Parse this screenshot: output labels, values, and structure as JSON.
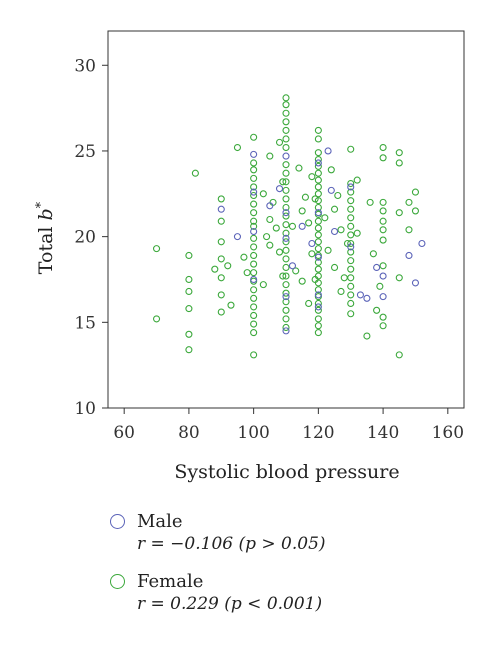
{
  "chart_data": {
    "type": "scatter",
    "xlabel": "Systolic blood pressure",
    "ylabel_prefix": "Total ",
    "ylabel_var": "b",
    "ylabel_sup": "*",
    "xlim": [
      55,
      165
    ],
    "ylim": [
      10,
      32
    ],
    "xticks": [
      "60",
      "80",
      "100",
      "120",
      "140",
      "160"
    ],
    "yticks": [
      "10",
      "15",
      "20",
      "25",
      "30"
    ],
    "grid": false,
    "legend_position": "below",
    "series": [
      {
        "name": "Male",
        "color": "#5b63b8",
        "stat": "r = −0.106 (p > 0.05)",
        "points": [
          [
            90,
            21.6
          ],
          [
            95,
            20.0
          ],
          [
            100,
            24.8
          ],
          [
            100,
            22.6
          ],
          [
            100,
            20.3
          ],
          [
            100,
            17.5
          ],
          [
            105,
            21.8
          ],
          [
            108,
            22.8
          ],
          [
            110,
            24.7
          ],
          [
            110,
            21.4
          ],
          [
            110,
            19.9
          ],
          [
            110,
            16.5
          ],
          [
            110,
            14.5
          ],
          [
            112,
            18.3
          ],
          [
            115,
            20.6
          ],
          [
            118,
            19.6
          ],
          [
            120,
            24.3
          ],
          [
            120,
            21.4
          ],
          [
            120,
            18.8
          ],
          [
            120,
            16.6
          ],
          [
            120,
            15.9
          ],
          [
            123,
            25.0
          ],
          [
            124,
            22.7
          ],
          [
            125,
            20.3
          ],
          [
            130,
            22.9
          ],
          [
            130,
            19.4
          ],
          [
            133,
            16.6
          ],
          [
            135,
            16.4
          ],
          [
            138,
            18.2
          ],
          [
            140,
            17.7
          ],
          [
            140,
            16.5
          ],
          [
            148,
            18.9
          ],
          [
            150,
            17.3
          ],
          [
            152,
            19.6
          ]
        ]
      },
      {
        "name": "Female",
        "color": "#3ba83b",
        "stat": "r = 0.229 (p < 0.001)",
        "points": [
          [
            70,
            19.3
          ],
          [
            70,
            15.2
          ],
          [
            80,
            18.9
          ],
          [
            80,
            17.5
          ],
          [
            80,
            16.8
          ],
          [
            80,
            15.8
          ],
          [
            80,
            14.3
          ],
          [
            80,
            13.4
          ],
          [
            82,
            23.7
          ],
          [
            88,
            18.1
          ],
          [
            90,
            22.2
          ],
          [
            90,
            20.9
          ],
          [
            90,
            19.7
          ],
          [
            90,
            18.7
          ],
          [
            90,
            17.6
          ],
          [
            90,
            16.6
          ],
          [
            90,
            15.6
          ],
          [
            92,
            18.3
          ],
          [
            93,
            16.0
          ],
          [
            95,
            25.2
          ],
          [
            97,
            18.8
          ],
          [
            98,
            17.9
          ],
          [
            100,
            25.8
          ],
          [
            100,
            24.3
          ],
          [
            100,
            23.9
          ],
          [
            100,
            23.4
          ],
          [
            100,
            22.9
          ],
          [
            100,
            22.4
          ],
          [
            100,
            21.9
          ],
          [
            100,
            21.4
          ],
          [
            100,
            20.9
          ],
          [
            100,
            20.6
          ],
          [
            100,
            19.9
          ],
          [
            100,
            19.4
          ],
          [
            100,
            18.9
          ],
          [
            100,
            18.4
          ],
          [
            100,
            17.9
          ],
          [
            100,
            17.4
          ],
          [
            100,
            16.9
          ],
          [
            100,
            16.4
          ],
          [
            100,
            15.9
          ],
          [
            100,
            15.4
          ],
          [
            100,
            14.9
          ],
          [
            100,
            14.4
          ],
          [
            100,
            13.1
          ],
          [
            103,
            22.5
          ],
          [
            103,
            17.2
          ],
          [
            104,
            20.0
          ],
          [
            105,
            24.7
          ],
          [
            105,
            21.0
          ],
          [
            105,
            19.5
          ],
          [
            106,
            22.0
          ],
          [
            107,
            20.5
          ],
          [
            108,
            25.5
          ],
          [
            108,
            19.1
          ],
          [
            109,
            23.2
          ],
          [
            109,
            17.7
          ],
          [
            110,
            28.1
          ],
          [
            110,
            27.7
          ],
          [
            110,
            27.2
          ],
          [
            110,
            26.7
          ],
          [
            110,
            26.2
          ],
          [
            110,
            25.7
          ],
          [
            110,
            25.2
          ],
          [
            110,
            24.2
          ],
          [
            110,
            23.7
          ],
          [
            110,
            23.2
          ],
          [
            110,
            22.7
          ],
          [
            110,
            22.2
          ],
          [
            110,
            21.7
          ],
          [
            110,
            21.2
          ],
          [
            110,
            20.7
          ],
          [
            110,
            20.2
          ],
          [
            110,
            19.7
          ],
          [
            110,
            19.2
          ],
          [
            110,
            18.7
          ],
          [
            110,
            18.2
          ],
          [
            110,
            17.7
          ],
          [
            110,
            17.2
          ],
          [
            110,
            16.7
          ],
          [
            110,
            16.2
          ],
          [
            110,
            15.7
          ],
          [
            110,
            15.2
          ],
          [
            110,
            14.7
          ],
          [
            112,
            20.6
          ],
          [
            113,
            18.0
          ],
          [
            114,
            24.0
          ],
          [
            115,
            21.5
          ],
          [
            115,
            17.4
          ],
          [
            116,
            22.3
          ],
          [
            117,
            20.8
          ],
          [
            117,
            16.1
          ],
          [
            118,
            23.5
          ],
          [
            118,
            19.0
          ],
          [
            119,
            22.2
          ],
          [
            119,
            17.5
          ],
          [
            120,
            26.2
          ],
          [
            120,
            25.7
          ],
          [
            120,
            24.9
          ],
          [
            120,
            24.5
          ],
          [
            120,
            24.1
          ],
          [
            120,
            23.7
          ],
          [
            120,
            23.3
          ],
          [
            120,
            22.9
          ],
          [
            120,
            22.5
          ],
          [
            120,
            22.1
          ],
          [
            120,
            21.7
          ],
          [
            120,
            21.3
          ],
          [
            120,
            20.9
          ],
          [
            120,
            20.5
          ],
          [
            120,
            20.1
          ],
          [
            120,
            19.7
          ],
          [
            120,
            19.3
          ],
          [
            120,
            18.9
          ],
          [
            120,
            18.5
          ],
          [
            120,
            18.1
          ],
          [
            120,
            17.7
          ],
          [
            120,
            17.3
          ],
          [
            120,
            16.9
          ],
          [
            120,
            16.5
          ],
          [
            120,
            16.1
          ],
          [
            120,
            15.7
          ],
          [
            120,
            15.2
          ],
          [
            120,
            14.8
          ],
          [
            120,
            14.4
          ],
          [
            122,
            21.1
          ],
          [
            123,
            19.2
          ],
          [
            124,
            23.9
          ],
          [
            125,
            21.6
          ],
          [
            125,
            18.2
          ],
          [
            126,
            22.4
          ],
          [
            127,
            20.4
          ],
          [
            127,
            16.8
          ],
          [
            128,
            17.6
          ],
          [
            129,
            19.6
          ],
          [
            130,
            25.1
          ],
          [
            130,
            23.1
          ],
          [
            130,
            22.6
          ],
          [
            130,
            22.1
          ],
          [
            130,
            21.6
          ],
          [
            130,
            21.1
          ],
          [
            130,
            20.6
          ],
          [
            130,
            20.1
          ],
          [
            130,
            19.6
          ],
          [
            130,
            19.1
          ],
          [
            130,
            18.6
          ],
          [
            130,
            18.1
          ],
          [
            130,
            17.6
          ],
          [
            130,
            17.1
          ],
          [
            130,
            16.6
          ],
          [
            130,
            16.1
          ],
          [
            130,
            15.5
          ],
          [
            132,
            23.3
          ],
          [
            132,
            20.2
          ],
          [
            135,
            14.2
          ],
          [
            136,
            22.0
          ],
          [
            137,
            19.0
          ],
          [
            138,
            15.7
          ],
          [
            139,
            17.1
          ],
          [
            140,
            25.2
          ],
          [
            140,
            24.6
          ],
          [
            140,
            22.0
          ],
          [
            140,
            21.5
          ],
          [
            140,
            20.9
          ],
          [
            140,
            20.4
          ],
          [
            140,
            19.8
          ],
          [
            140,
            18.3
          ],
          [
            140,
            15.3
          ],
          [
            140,
            14.8
          ],
          [
            145,
            24.9
          ],
          [
            145,
            24.3
          ],
          [
            145,
            21.4
          ],
          [
            145,
            17.6
          ],
          [
            145,
            13.1
          ],
          [
            148,
            22.0
          ],
          [
            148,
            20.4
          ],
          [
            150,
            22.6
          ],
          [
            150,
            21.5
          ]
        ]
      }
    ]
  }
}
